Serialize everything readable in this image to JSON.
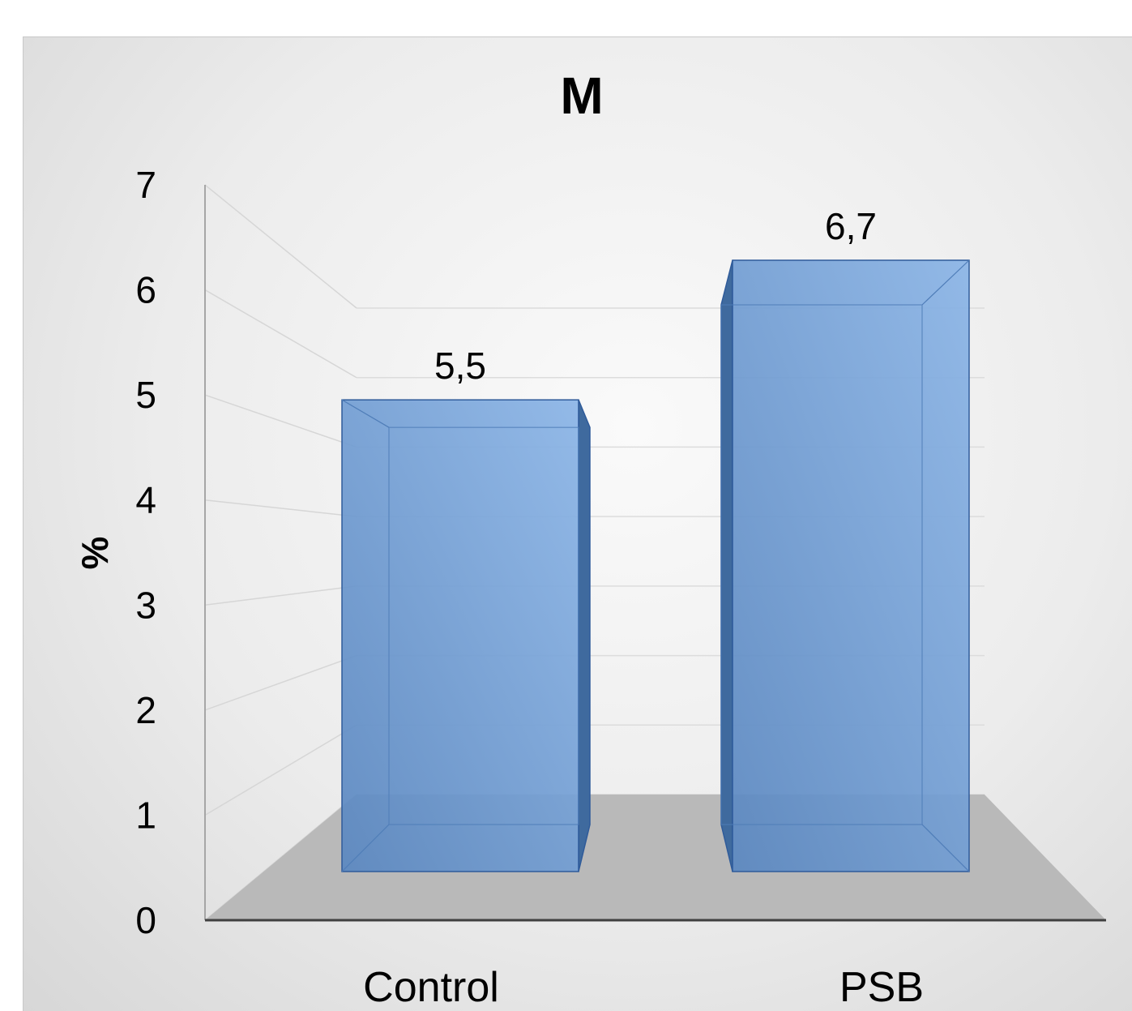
{
  "chart_data": {
    "type": "bar",
    "title": "M",
    "xlabel": "",
    "ylabel": "%",
    "categories": [
      "Control",
      "PSB"
    ],
    "values": [
      5.5,
      6.7
    ],
    "data_labels": [
      "5,5",
      "6,7"
    ],
    "ylim": [
      0,
      7
    ],
    "yticks": [
      "0",
      "1",
      "2",
      "3",
      "4",
      "5",
      "6",
      "7"
    ],
    "grid": true,
    "legend": "none",
    "style": "3d-column",
    "colors": {
      "bar_front": "#6f9bd2",
      "bar_side": "#3f6a9e",
      "bar_top": "#8fb6e6",
      "bar_edge": "#2f5b9a",
      "floor": "#b9b9b9"
    }
  }
}
